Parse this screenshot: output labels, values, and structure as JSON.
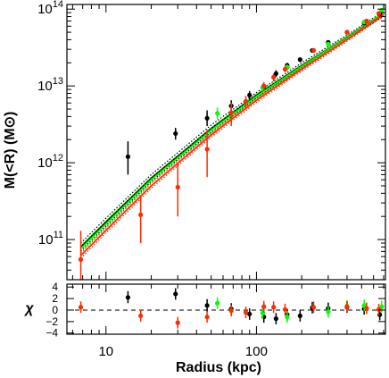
{
  "chart_data": {
    "type": "scatter",
    "xlabel": "Radius (kpc)",
    "x_scale": "log",
    "xlim": [
      5.5,
      720
    ],
    "x_ticks": [
      {
        "value": 10,
        "label": "10"
      },
      {
        "value": 100,
        "label": "100"
      }
    ],
    "panels": {
      "top": {
        "ylabel": "M(<R) (M⊙)",
        "y_scale": "log",
        "ylim": [
          30000000000.0,
          115000000000000.0
        ],
        "y_ticks": [
          {
            "value": 100000000000.0,
            "mantissa": "10",
            "exponent": "11"
          },
          {
            "value": 1000000000000.0,
            "mantissa": "10",
            "exponent": "12"
          },
          {
            "value": 10000000000000.0,
            "mantissa": "10",
            "exponent": "13"
          },
          {
            "value": 100000000000000.0,
            "mantissa": "10",
            "exponent": "14"
          }
        ],
        "model_curves": [
          {
            "color": "#000000",
            "style": "solid",
            "x": [
              6.8,
              10,
              20,
              50,
              100,
              200,
              400,
              700
            ],
            "y": [
              80000000000.0,
              170000000000.0,
              630000000000.0,
              2800000000000.0,
              7600000000000.0,
              18500000000000.0,
              43000000000000.0,
              87000000000000.0
            ]
          },
          {
            "color": "#000000",
            "style": "dotted",
            "x": [
              6.8,
              10,
              20,
              50,
              100,
              200,
              400,
              700
            ],
            "y": [
              90000000000.0,
              190000000000.0,
              700000000000.0,
              3100000000000.0,
              8200000000000.0,
              20000000000000.0,
              46000000000000.0,
              93000000000000.0
            ]
          },
          {
            "color": "#000000",
            "style": "dotted",
            "x": [
              6.8,
              10,
              20,
              50,
              100,
              200,
              400,
              700
            ],
            "y": [
              71000000000.0,
              150000000000.0,
              570000000000.0,
              2500000000000.0,
              7000000000000.0,
              17200000000000.0,
              40000000000000.0,
              81000000000000.0
            ]
          },
          {
            "color": "#00ff00",
            "style": "solid",
            "x": [
              6.8,
              10,
              20,
              50,
              100,
              200,
              400,
              700
            ],
            "y": [
              76000000000.0,
              160000000000.0,
              600000000000.0,
              2650000000000.0,
              7300000000000.0,
              18000000000000.0,
              42500000000000.0,
              87000000000000.0
            ]
          },
          {
            "color": "#00ff00",
            "style": "dotted",
            "x": [
              6.8,
              10,
              20,
              50,
              100,
              200,
              400,
              700
            ],
            "y": [
              83000000000.0,
              175000000000.0,
              650000000000.0,
              2850000000000.0,
              7800000000000.0,
              19000000000000.0,
              44500000000000.0,
              91000000000000.0
            ]
          },
          {
            "color": "#00ff00",
            "style": "dotted",
            "x": [
              6.8,
              10,
              20,
              50,
              100,
              200,
              400,
              700
            ],
            "y": [
              69000000000.0,
              145000000000.0,
              550000000000.0,
              2450000000000.0,
              6800000000000.0,
              17000000000000.0,
              40500000000000.0,
              83000000000000.0
            ]
          },
          {
            "color": "#ff2a00",
            "style": "solid",
            "x": [
              6.8,
              10,
              20,
              50,
              100,
              200,
              400,
              700
            ],
            "y": [
              62000000000.0,
              132000000000.0,
              500000000000.0,
              2300000000000.0,
              6500000000000.0,
              16500000000000.0,
              40000000000000.0,
              85000000000000.0
            ]
          },
          {
            "color": "#ff2a00",
            "style": "dotted",
            "x": [
              6.8,
              10,
              20,
              50,
              100,
              200,
              400,
              700
            ],
            "y": [
              67000000000.0,
              142000000000.0,
              540000000000.0,
              2450000000000.0,
              6900000000000.0,
              17400000000000.0,
              42000000000000.0,
              89000000000000.0
            ]
          },
          {
            "color": "#ff2a00",
            "style": "dotted",
            "x": [
              6.8,
              10,
              20,
              50,
              100,
              200,
              400,
              700
            ],
            "y": [
              57000000000.0,
              122000000000.0,
              465000000000.0,
              2150000000000.0,
              6100000000000.0,
              15600000000000.0,
              38000000000000.0,
              81000000000000.0
            ]
          }
        ],
        "points": [
          {
            "color": "#000000",
            "x": 14,
            "y": 1200000000000.0,
            "ylo": 700000000000.0,
            "yhi": 1900000000000.0
          },
          {
            "color": "#000000",
            "x": 29,
            "y": 2400000000000.0,
            "ylo": 2000000000000.0,
            "yhi": 2850000000000.0
          },
          {
            "color": "#000000",
            "x": 47,
            "y": 3800000000000.0,
            "ylo": 3000000000000.0,
            "yhi": 4800000000000.0
          },
          {
            "color": "#000000",
            "x": 68,
            "y": 5500000000000.0,
            "ylo": 4600000000000.0,
            "yhi": 6500000000000.0
          },
          {
            "color": "#000000",
            "x": 90,
            "y": 7600000000000.0,
            "ylo": 6700000000000.0,
            "yhi": 8600000000000.0
          },
          {
            "color": "#000000",
            "x": 112,
            "y": 9800000000000.0,
            "ylo": 8800000000000.0,
            "yhi": 10900000000000.0
          },
          {
            "color": "#000000",
            "x": 135,
            "y": 14500000000000.0,
            "ylo": 13000000000000.0,
            "yhi": 16000000000000.0
          },
          {
            "color": "#000000",
            "x": 160,
            "y": 18500000000000.0,
            "ylo": 17000000000000.0,
            "yhi": 20000000000000.0
          },
          {
            "color": "#000000",
            "x": 195,
            "y": 22000000000000.0,
            "ylo": 20500000000000.0,
            "yhi": 23500000000000.0
          },
          {
            "color": "#000000",
            "x": 235,
            "y": 29000000000000.0,
            "ylo": 27000000000000.0,
            "yhi": 31000000000000.0
          },
          {
            "color": "#000000",
            "x": 300,
            "y": 37000000000000.0,
            "ylo": 35000000000000.0,
            "yhi": 39000000000000.0
          },
          {
            "color": "#000000",
            "x": 400,
            "y": 50000000000000.0,
            "ylo": 47000000000000.0,
            "yhi": 53000000000000.0
          },
          {
            "color": "#000000",
            "x": 520,
            "y": 66000000000000.0,
            "ylo": 62000000000000.0,
            "yhi": 70000000000000.0
          },
          {
            "color": "#000000",
            "x": 660,
            "y": 86000000000000.0,
            "ylo": 81000000000000.0,
            "yhi": 91000000000000.0
          },
          {
            "color": "#00ff00",
            "x": 55,
            "y": 4400000000000.0,
            "ylo": 3700000000000.0,
            "yhi": 5200000000000.0
          },
          {
            "color": "#00ff00",
            "x": 110,
            "y": 9600000000000.0,
            "ylo": 8600000000000.0,
            "yhi": 10700000000000.0
          },
          {
            "color": "#00ff00",
            "x": 160,
            "y": 17500000000000.0,
            "ylo": 16000000000000.0,
            "yhi": 19000000000000.0
          },
          {
            "color": "#00ff00",
            "x": 300,
            "y": 35000000000000.0,
            "ylo": 33000000000000.0,
            "yhi": 37000000000000.0
          },
          {
            "color": "#00ff00",
            "x": 400,
            "y": 49500000000000.0,
            "ylo": 47000000000000.0,
            "yhi": 52000000000000.0
          },
          {
            "color": "#00ff00",
            "x": 520,
            "y": 68000000000000.0,
            "ylo": 64000000000000.0,
            "yhi": 72000000000000.0
          },
          {
            "color": "#00ff00",
            "x": 680,
            "y": 97000000000000.0,
            "ylo": 92000000000000.0,
            "yhi": 102000000000000.0
          },
          {
            "color": "#ff2a00",
            "x": 6.8,
            "y": 55000000000.0,
            "ylo": 30000000000.0,
            "yhi": 130000000000.0
          },
          {
            "color": "#ff2a00",
            "x": 17,
            "y": 210000000000.0,
            "ylo": 90000000000.0,
            "yhi": 380000000000.0
          },
          {
            "color": "#ff2a00",
            "x": 30,
            "y": 480000000000.0,
            "ylo": 200000000000.0,
            "yhi": 1000000000000.0
          },
          {
            "color": "#ff2a00",
            "x": 47,
            "y": 1500000000000.0,
            "ylo": 650000000000.0,
            "yhi": 2700000000000.0
          },
          {
            "color": "#ff2a00",
            "x": 68,
            "y": 4500000000000.0,
            "ylo": 3000000000000.0,
            "yhi": 6000000000000.0
          },
          {
            "color": "#ff2a00",
            "x": 85,
            "y": 6300000000000.0,
            "ylo": 5300000000000.0,
            "yhi": 7400000000000.0
          },
          {
            "color": "#ff2a00",
            "x": 112,
            "y": 10000000000000.0,
            "ylo": 8800000000000.0,
            "yhi": 11200000000000.0
          },
          {
            "color": "#ff2a00",
            "x": 130,
            "y": 13000000000000.0,
            "ylo": 11500000000000.0,
            "yhi": 14500000000000.0
          },
          {
            "color": "#ff2a00",
            "x": 155,
            "y": 16500000000000.0,
            "ylo": 15000000000000.0,
            "yhi": 18000000000000.0
          },
          {
            "color": "#ff2a00",
            "x": 240,
            "y": 29000000000000.0,
            "ylo": 27000000000000.0,
            "yhi": 31000000000000.0
          },
          {
            "color": "#ff2a00",
            "x": 400,
            "y": 50000000000000.0,
            "ylo": 47500000000000.0,
            "yhi": 52500000000000.0
          },
          {
            "color": "#ff2a00",
            "x": 540,
            "y": 70000000000000.0,
            "ylo": 66000000000000.0,
            "yhi": 74000000000000.0
          },
          {
            "color": "#ff2a00",
            "x": 650,
            "y": 88000000000000.0,
            "ylo": 83000000000000.0,
            "yhi": 93000000000000.0
          }
        ]
      },
      "bottom": {
        "ylabel": "χ",
        "y_scale": "linear",
        "ylim": [
          -4.2,
          4.5
        ],
        "y_ticks": [
          {
            "value": 4,
            "label": "4"
          },
          {
            "value": 2,
            "label": "2"
          },
          {
            "value": 0,
            "label": "0"
          },
          {
            "value": -2,
            "label": "−2"
          },
          {
            "value": -4,
            "label": "−4"
          }
        ],
        "zero_line": 0,
        "points": [
          {
            "color": "#000000",
            "x": 14,
            "y": 2.2,
            "ylo": 1.2,
            "yhi": 3.3
          },
          {
            "color": "#000000",
            "x": 29,
            "y": 2.8,
            "ylo": 1.8,
            "yhi": 3.8
          },
          {
            "color": "#000000",
            "x": 47,
            "y": 0.8,
            "ylo": -0.3,
            "yhi": 1.9
          },
          {
            "color": "#000000",
            "x": 68,
            "y": 0.2,
            "ylo": -0.8,
            "yhi": 1.2
          },
          {
            "color": "#000000",
            "x": 90,
            "y": -0.7,
            "ylo": -1.7,
            "yhi": 0.3
          },
          {
            "color": "#000000",
            "x": 112,
            "y": -1.2,
            "ylo": -2.2,
            "yhi": -0.2
          },
          {
            "color": "#000000",
            "x": 135,
            "y": -1.5,
            "ylo": -2.5,
            "yhi": -0.5
          },
          {
            "color": "#000000",
            "x": 160,
            "y": -0.8,
            "ylo": -1.8,
            "yhi": 0.2
          },
          {
            "color": "#000000",
            "x": 195,
            "y": -1.0,
            "ylo": -2.0,
            "yhi": 0.0
          },
          {
            "color": "#000000",
            "x": 235,
            "y": 0.4,
            "ylo": -0.6,
            "yhi": 1.4
          },
          {
            "color": "#000000",
            "x": 300,
            "y": 0.3,
            "ylo": -0.7,
            "yhi": 1.3
          },
          {
            "color": "#000000",
            "x": 400,
            "y": 0.5,
            "ylo": -0.5,
            "yhi": 1.5
          },
          {
            "color": "#000000",
            "x": 520,
            "y": 0.2,
            "ylo": -0.8,
            "yhi": 1.2
          },
          {
            "color": "#000000",
            "x": 660,
            "y": -0.8,
            "ylo": -1.8,
            "yhi": 0.2
          },
          {
            "color": "#00ff00",
            "x": 55,
            "y": 1.2,
            "ylo": 0.2,
            "yhi": 2.2
          },
          {
            "color": "#00ff00",
            "x": 110,
            "y": -0.5,
            "ylo": -1.5,
            "yhi": 0.5
          },
          {
            "color": "#00ff00",
            "x": 160,
            "y": -1.2,
            "ylo": -2.2,
            "yhi": -0.2
          },
          {
            "color": "#00ff00",
            "x": 300,
            "y": -0.3,
            "ylo": -1.3,
            "yhi": 0.7
          },
          {
            "color": "#00ff00",
            "x": 400,
            "y": 0.7,
            "ylo": -0.3,
            "yhi": 1.7
          },
          {
            "color": "#00ff00",
            "x": 520,
            "y": 0.8,
            "ylo": -0.2,
            "yhi": 1.8
          },
          {
            "color": "#00ff00",
            "x": 680,
            "y": 0.6,
            "ylo": -0.4,
            "yhi": 1.6
          },
          {
            "color": "#ff2a00",
            "x": 6.8,
            "y": 0.5,
            "ylo": -0.5,
            "yhi": 1.5
          },
          {
            "color": "#ff2a00",
            "x": 17,
            "y": -1.0,
            "ylo": -2.0,
            "yhi": 0.0
          },
          {
            "color": "#ff2a00",
            "x": 30,
            "y": -2.2,
            "ylo": -3.2,
            "yhi": -1.2
          },
          {
            "color": "#ff2a00",
            "x": 47,
            "y": -1.2,
            "ylo": -2.2,
            "yhi": -0.2
          },
          {
            "color": "#ff2a00",
            "x": 68,
            "y": -0.1,
            "ylo": -1.1,
            "yhi": 0.9
          },
          {
            "color": "#ff2a00",
            "x": 85,
            "y": -0.4,
            "ylo": -1.4,
            "yhi": 0.6
          },
          {
            "color": "#ff2a00",
            "x": 112,
            "y": 0.6,
            "ylo": -0.4,
            "yhi": 1.6
          },
          {
            "color": "#ff2a00",
            "x": 130,
            "y": 0.5,
            "ylo": -0.5,
            "yhi": 1.5
          },
          {
            "color": "#ff2a00",
            "x": 155,
            "y": 0.1,
            "ylo": -0.9,
            "yhi": 1.1
          },
          {
            "color": "#ff2a00",
            "x": 240,
            "y": 0.5,
            "ylo": -0.5,
            "yhi": 1.5
          },
          {
            "color": "#ff2a00",
            "x": 400,
            "y": 0.6,
            "ylo": -0.4,
            "yhi": 1.6
          },
          {
            "color": "#ff2a00",
            "x": 540,
            "y": 0.3,
            "ylo": -0.7,
            "yhi": 1.3
          },
          {
            "color": "#ff2a00",
            "x": 650,
            "y": 0.1,
            "ylo": -0.9,
            "yhi": 1.1
          }
        ]
      }
    }
  }
}
